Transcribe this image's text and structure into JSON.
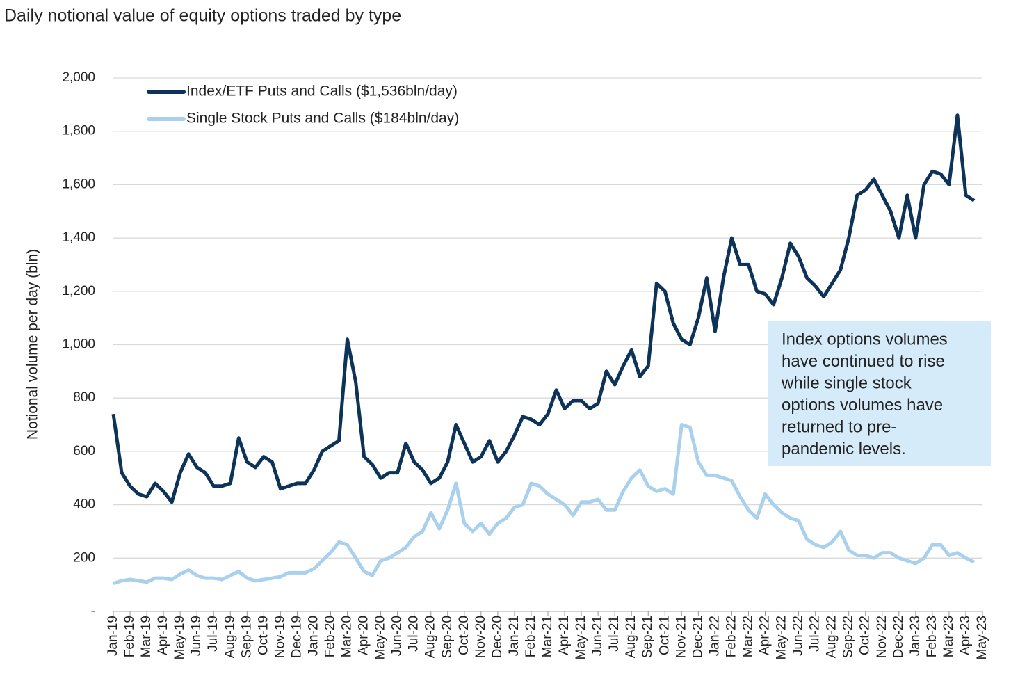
{
  "chart_data": {
    "type": "line",
    "title": "Daily notional value of equity options traded by type",
    "ylabel": "Notional volume per day (bln)",
    "annotation": [
      "Index options volumes",
      "have continued to rise",
      "while single stock",
      "options volumes have",
      "returned to pre-",
      "pandemic levels."
    ],
    "categories": [
      "Jan-19",
      null,
      "Feb-19",
      null,
      "Mar-19",
      null,
      "Apr-19",
      null,
      "May-19",
      null,
      "Jun-19",
      null,
      "Jul-19",
      null,
      "Aug-19",
      null,
      "Sep-19",
      null,
      "Oct-19",
      null,
      "Nov-19",
      null,
      "Dec-19",
      null,
      "Jan-20",
      null,
      "Feb-20",
      null,
      "Mar-20",
      null,
      "Apr-20",
      null,
      "May-20",
      null,
      "Jun-20",
      null,
      "Jul-20",
      null,
      "Aug-20",
      null,
      "Sep-20",
      null,
      "Oct-20",
      null,
      "Nov-20",
      null,
      "Dec-20",
      null,
      "Jan-21",
      null,
      "Feb-21",
      null,
      "Mar-21",
      null,
      "Apr-21",
      null,
      "May-21",
      null,
      "Jun-21",
      null,
      "Jul-21",
      null,
      "Aug-21",
      null,
      "Sep-21",
      null,
      "Oct-21",
      null,
      "Nov-21",
      null,
      "Dec-21",
      null,
      "Jan-22",
      null,
      "Feb-22",
      null,
      "Mar-22",
      null,
      "Apr-22",
      null,
      "May-22",
      null,
      "Jun-22",
      null,
      "Jul-22",
      null,
      "Aug-22",
      null,
      "Sep-22",
      null,
      "Oct-22",
      null,
      "Nov-22",
      null,
      "Dec-22",
      null,
      "Jan-23",
      null,
      "Feb-23",
      null,
      "Mar-23",
      null,
      "Apr-23",
      null,
      "May-23"
    ],
    "series": [
      {
        "name": "Index/ETF Puts and Calls ($1,536bln/day)",
        "color": "#0d3358",
        "values": [
          740,
          520,
          470,
          440,
          430,
          480,
          450,
          410,
          520,
          590,
          540,
          520,
          470,
          470,
          480,
          650,
          560,
          540,
          580,
          560,
          460,
          470,
          480,
          480,
          530,
          600,
          620,
          640,
          1020,
          860,
          580,
          550,
          500,
          520,
          520,
          630,
          560,
          530,
          480,
          500,
          560,
          700,
          630,
          560,
          580,
          640,
          560,
          600,
          660,
          730,
          720,
          700,
          740,
          830,
          760,
          790,
          790,
          760,
          780,
          900,
          850,
          920,
          980,
          880,
          920,
          1230,
          1200,
          1080,
          1020,
          1000,
          1100,
          1250,
          1050,
          1250,
          1400,
          1300,
          1300,
          1200,
          1190,
          1150,
          1250,
          1380,
          1330,
          1250,
          1220,
          1180,
          1230,
          1280,
          1400,
          1560,
          1580,
          1620,
          1560,
          1500,
          1400,
          1560,
          1400,
          1600,
          1650,
          1640,
          1600,
          1860,
          1560,
          1540,
          null
        ]
      },
      {
        "name": "Single Stock Puts and Calls ($184bln/day)",
        "color": "#a9d1ee",
        "values": [
          105,
          115,
          120,
          115,
          110,
          125,
          125,
          120,
          140,
          155,
          135,
          125,
          125,
          120,
          135,
          150,
          125,
          115,
          120,
          125,
          130,
          145,
          145,
          145,
          160,
          190,
          220,
          260,
          250,
          200,
          150,
          135,
          190,
          200,
          220,
          240,
          280,
          300,
          370,
          310,
          380,
          480,
          330,
          300,
          330,
          290,
          330,
          350,
          390,
          400,
          480,
          470,
          440,
          420,
          400,
          360,
          410,
          410,
          420,
          380,
          380,
          450,
          500,
          530,
          470,
          450,
          460,
          440,
          700,
          690,
          560,
          510,
          510,
          500,
          490,
          430,
          380,
          350,
          440,
          400,
          370,
          350,
          340,
          270,
          250,
          240,
          260,
          300,
          230,
          210,
          210,
          200,
          220,
          220,
          200,
          190,
          180,
          200,
          250,
          250,
          210,
          220,
          200,
          185,
          null
        ]
      }
    ],
    "ylim": [
      0,
      2000
    ],
    "yticks": [
      {
        "value": 0,
        "label": "-"
      },
      200,
      400,
      600,
      800,
      {
        "value": 1000,
        "label": "1,000"
      },
      {
        "value": 1200,
        "label": "1,200"
      },
      {
        "value": 1400,
        "label": "1,400"
      },
      {
        "value": 1600,
        "label": "1,600"
      },
      {
        "value": 1800,
        "label": "1,800"
      },
      {
        "value": 2000,
        "label": "2,000"
      }
    ],
    "grid": true,
    "legend": "top-left"
  }
}
